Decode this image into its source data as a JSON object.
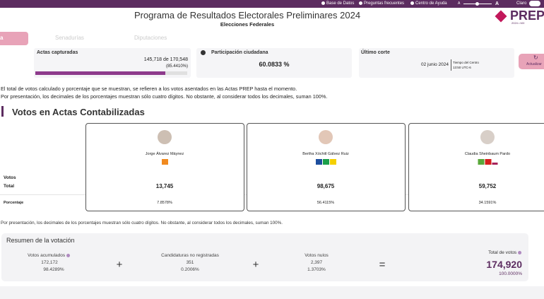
{
  "top_bar": {
    "links": [
      "Base de Datos",
      "Preguntas frecuentes",
      "Centro de Ayuda"
    ],
    "font_small": "A",
    "font_large": "A",
    "theme": "Claro"
  },
  "header": {
    "title": "Programa de Resultados Electorales Preliminares 2024",
    "subtitle": "Elecciones Federales",
    "logo": "PREP",
    "logo_sub": "2024 • MX"
  },
  "tabs": [
    "a",
    "Senadurías",
    "Diputaciones"
  ],
  "stats": {
    "actas": {
      "label": "Actas capturadas",
      "count": "145,718 de 170,548",
      "percent": {
        "value": 85.441,
        "label": "(85.4410%)"
      }
    },
    "participacion": {
      "label": "Participación ciudadana",
      "value": "60.0833 %"
    },
    "corte": {
      "label": "Último corte",
      "date": "02 junio 2024",
      "zone": "Tiempo del Centro",
      "time": "13:50 UTC-6"
    },
    "refresh": "Actualizar"
  },
  "notes": [
    "El total de votos calculado y porcentaje que se muestran, se refieren a los votos asentados en las Actas PREP hasta el momento.",
    "Por presentación, los decimales de los porcentajes muestran sólo cuatro dígitos. No obstante, al considerar todos los decimales, suman 100%."
  ],
  "section_title": "Votos en Actas Contabilizadas",
  "table": {
    "row_labels": [
      "Votos",
      "Total",
      "Porcentaje"
    ],
    "candidates": [
      {
        "name": "Jorge Álvarez Máynez",
        "total": "13,745",
        "percent": "7.8578%"
      },
      {
        "name": "Bertha Xóchitl Gálvez Ruiz",
        "total": "98,675",
        "percent": "56.4115%"
      },
      {
        "name": "Claudia Sheinbaum Pardo",
        "total": "59,752",
        "percent": "34.1591%"
      }
    ]
  },
  "footnote": "Por presentación, los decimales de los porcentajes muestran sólo cuatro dígitos. No obstante, al considerar todos los decimales, suman 100%.",
  "summary": {
    "title": "Resumen de la votación",
    "items": [
      {
        "label": "Votos acumulados",
        "value": "172,172",
        "percent": "98.4289%"
      },
      {
        "label": "Candidaturas no registradas",
        "value": "351",
        "percent": "0.2006%"
      },
      {
        "label": "Votos nulos",
        "value": "2,397",
        "percent": "1.3703%"
      }
    ],
    "total": {
      "label": "Total de votos",
      "value": "174,920",
      "percent": "100.0000%"
    }
  }
}
